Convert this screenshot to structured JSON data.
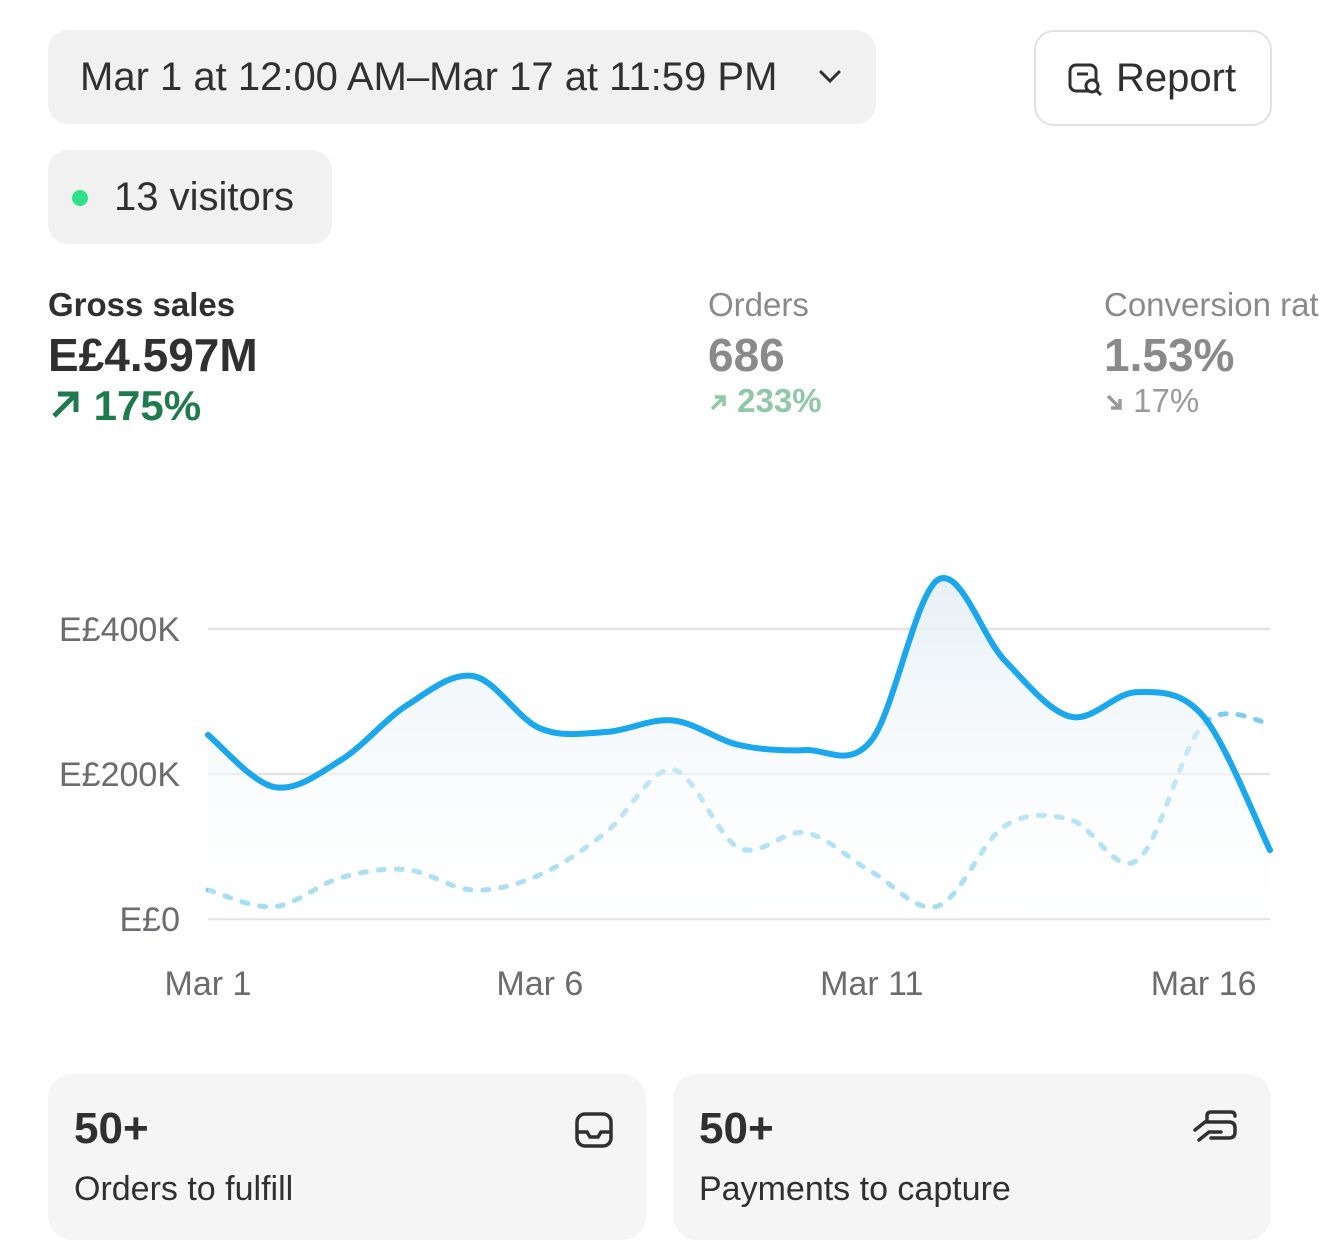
{
  "header": {
    "date_range": "Mar 1 at 12:00 AM–Mar 17 at 11:59 PM",
    "report_button": "Report",
    "visitors": "13 visitors"
  },
  "metrics": [
    {
      "label": "Gross sales",
      "value": "E£4.597M",
      "change": "175%",
      "direction": "up"
    },
    {
      "label": "Orders",
      "value": "686",
      "change": "233%",
      "direction": "up"
    },
    {
      "label": "Conversion rate",
      "value": "1.53%",
      "change": "17%",
      "direction": "down"
    }
  ],
  "chart_data": {
    "type": "line",
    "categories": [
      "Mar 1",
      null,
      null,
      null,
      null,
      "Mar 6",
      null,
      null,
      null,
      null,
      "Mar 11",
      null,
      null,
      null,
      null,
      "Mar 16",
      null
    ],
    "series": [
      {
        "color": "#1aa7ec",
        "style": "solid",
        "area": true,
        "values": [
          254000,
          182000,
          219000,
          295000,
          335000,
          263000,
          258000,
          274000,
          240000,
          233000,
          247000,
          468000,
          357000,
          279000,
          313000,
          279000,
          95000
        ]
      },
      {
        "color": "#7ccdee",
        "style": "dotted",
        "values": [
          40000,
          17000,
          57000,
          68000,
          40000,
          61000,
          120000,
          206000,
          98000,
          119000,
          65000,
          18000,
          128000,
          137000,
          81000,
          269000,
          270000
        ]
      }
    ],
    "ylim": [
      0,
      480000
    ],
    "yticks": [
      {
        "value": 0,
        "label": "E£0"
      },
      {
        "value": 200000,
        "label": "E£200K"
      },
      {
        "value": 400000,
        "label": "E£400K"
      }
    ],
    "grid": true
  },
  "cards": [
    {
      "value": "50+",
      "label": "Orders to fulfill"
    },
    {
      "value": "50+",
      "label": "Payments to capture"
    }
  ]
}
